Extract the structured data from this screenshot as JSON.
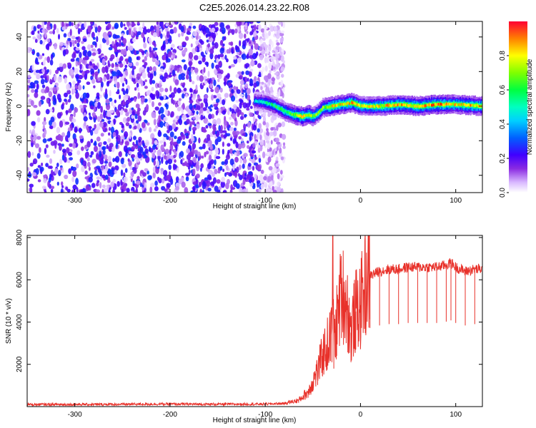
{
  "title": "C2E5.2026.014.23.22.R08",
  "chart_data": [
    {
      "type": "heatmap",
      "xlabel": "Height of straight line (km)",
      "ylabel": "Frequency (Hz)",
      "xlim": [
        -350,
        128
      ],
      "ylim": [
        -50,
        49
      ],
      "xticks": [
        -300,
        -200,
        -100,
        0,
        100
      ],
      "xtick_labels": [
        "-300",
        "-200",
        "-100",
        "0",
        "100"
      ],
      "yticks": [
        -40,
        -20,
        0,
        20,
        40
      ],
      "ytick_labels": [
        "-40",
        "-20",
        "0",
        "20",
        "40"
      ],
      "colorbar": {
        "label": "Normalized spectral amplitude",
        "range": [
          0,
          1
        ],
        "ticks": [
          0.0,
          0.2,
          0.4,
          0.6,
          0.8
        ],
        "tick_labels": [
          "0.0",
          "0.2",
          "0.4",
          "0.6",
          "0.8"
        ],
        "colormap": [
          "#ffffff",
          "#d9b8ff",
          "#8a2be2",
          "#4000ff",
          "#0040ff",
          "#00c0ff",
          "#00ffc0",
          "#00ff40",
          "#80ff00",
          "#ffff00",
          "#ff8000",
          "#ff0000"
        ]
      },
      "noise_region": {
        "x_range": [
          -350,
          -80
        ],
        "amplitude": [
          0.05,
          0.35
        ]
      },
      "signal_trace": {
        "x": [
          -112,
          -100,
          -90,
          -80,
          -70,
          -62,
          -55,
          -50,
          -45,
          -40,
          -30,
          -20,
          -10,
          0,
          20,
          40,
          60,
          80,
          100,
          128
        ],
        "freq": [
          3,
          2,
          0,
          -3,
          -5,
          -6,
          -5,
          -6,
          -4,
          -1,
          0,
          1,
          2,
          0,
          0,
          1,
          0,
          1,
          1,
          0
        ],
        "amplitude": [
          0.45,
          0.55,
          0.6,
          0.65,
          0.75,
          0.85,
          0.8,
          0.7,
          0.7,
          0.7,
          0.85,
          0.8,
          0.85,
          0.75,
          0.8,
          0.85,
          0.8,
          0.9,
          0.8,
          0.85
        ]
      }
    },
    {
      "type": "line",
      "xlabel": "Height of straight line (km)",
      "ylabel": "SNR (10 * v/v)",
      "xlim": [
        -350,
        128
      ],
      "ylim": [
        0,
        8100
      ],
      "xticks": [
        -300,
        -200,
        -100,
        0,
        100
      ],
      "xtick_labels": [
        "-300",
        "-200",
        "-100",
        "0",
        "100"
      ],
      "yticks": [
        2000,
        4000,
        6000,
        8000
      ],
      "ytick_labels": [
        "2000",
        "4000",
        "6000",
        "8000"
      ],
      "line_color": "#e8312a",
      "series": [
        {
          "x": [
            -350,
            -300,
            -250,
            -200,
            -150,
            -100,
            -80,
            -65,
            -55,
            -50,
            -45,
            -40,
            -35,
            -30,
            -29,
            -28,
            -25,
            -20,
            -15,
            -10,
            -5,
            0,
            5,
            10,
            20,
            30,
            40,
            50,
            60,
            70,
            80,
            90,
            95,
            100,
            110,
            120,
            128
          ],
          "values": [
            100,
            100,
            110,
            120,
            110,
            120,
            150,
            300,
            700,
            1200,
            1700,
            2400,
            2900,
            3500,
            8000,
            3000,
            4000,
            5500,
            5000,
            3500,
            4500,
            4800,
            5800,
            6200,
            6400,
            6500,
            6500,
            6600,
            6600,
            6600,
            6600,
            6700,
            6800,
            6600,
            6400,
            6500,
            6500
          ]
        }
      ]
    }
  ]
}
